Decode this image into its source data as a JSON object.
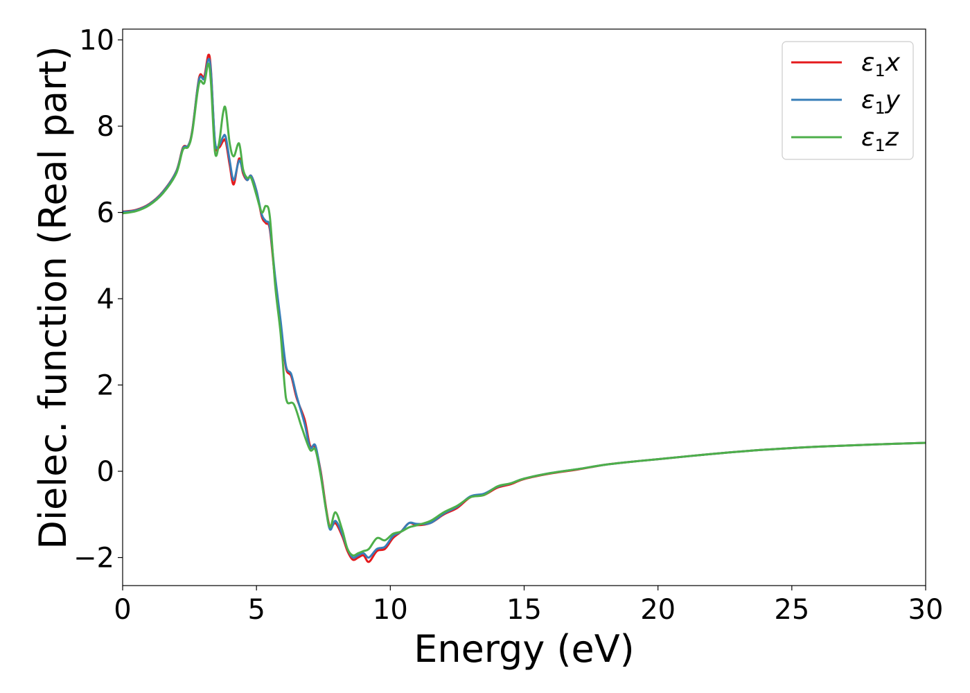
{
  "chart_data": {
    "type": "line",
    "xlabel": "Energy (eV)",
    "ylabel": "Dielec. function (Real part)",
    "xlim": [
      0,
      30
    ],
    "ylim": [
      -2.65,
      10.25
    ],
    "xticks": [
      "0",
      "5",
      "10",
      "15",
      "20",
      "25",
      "30"
    ],
    "yticks": [
      "−2",
      "0",
      "2",
      "4",
      "6",
      "8",
      "10"
    ],
    "xtick_values": [
      0,
      5,
      10,
      15,
      20,
      25,
      30
    ],
    "ytick_values": [
      -2,
      0,
      2,
      4,
      6,
      8,
      10
    ],
    "grid": false,
    "legend_position": "top-right",
    "series": [
      {
        "name": "ε₁x",
        "legend_base": "ε",
        "legend_sub": "1",
        "legend_var": "x",
        "color": "#e41a1c",
        "points": [
          [
            0,
            6.02
          ],
          [
            0.5,
            6.06
          ],
          [
            1,
            6.2
          ],
          [
            1.5,
            6.48
          ],
          [
            2,
            6.95
          ],
          [
            2.25,
            7.5
          ],
          [
            2.45,
            7.55
          ],
          [
            2.6,
            7.9
          ],
          [
            2.8,
            8.9
          ],
          [
            2.9,
            9.2
          ],
          [
            3.05,
            9.15
          ],
          [
            3.2,
            9.65
          ],
          [
            3.3,
            9.3
          ],
          [
            3.45,
            7.6
          ],
          [
            3.6,
            7.5
          ],
          [
            3.75,
            7.65
          ],
          [
            3.85,
            7.65
          ],
          [
            4.0,
            7.1
          ],
          [
            4.15,
            6.65
          ],
          [
            4.35,
            7.25
          ],
          [
            4.5,
            6.9
          ],
          [
            4.65,
            6.75
          ],
          [
            4.8,
            6.85
          ],
          [
            5.0,
            6.5
          ],
          [
            5.2,
            5.9
          ],
          [
            5.35,
            5.75
          ],
          [
            5.5,
            5.6
          ],
          [
            5.7,
            4.4
          ],
          [
            5.9,
            3.4
          ],
          [
            6.1,
            2.4
          ],
          [
            6.3,
            2.2
          ],
          [
            6.5,
            1.7
          ],
          [
            6.8,
            1.2
          ],
          [
            7.0,
            0.6
          ],
          [
            7.2,
            0.55
          ],
          [
            7.4,
            0.0
          ],
          [
            7.6,
            -0.85
          ],
          [
            7.75,
            -1.3
          ],
          [
            7.95,
            -1.2
          ],
          [
            8.2,
            -1.5
          ],
          [
            8.4,
            -1.85
          ],
          [
            8.6,
            -2.05
          ],
          [
            8.8,
            -2.0
          ],
          [
            9.0,
            -1.95
          ],
          [
            9.2,
            -2.1
          ],
          [
            9.5,
            -1.85
          ],
          [
            9.8,
            -1.8
          ],
          [
            10.1,
            -1.55
          ],
          [
            10.4,
            -1.4
          ],
          [
            10.7,
            -1.2
          ],
          [
            11.0,
            -1.25
          ],
          [
            11.5,
            -1.2
          ],
          [
            12.0,
            -1.0
          ],
          [
            12.5,
            -0.85
          ],
          [
            13.0,
            -0.6
          ],
          [
            13.5,
            -0.55
          ],
          [
            14.0,
            -0.38
          ],
          [
            14.5,
            -0.3
          ],
          [
            15.0,
            -0.18
          ],
          [
            16.0,
            -0.05
          ],
          [
            17.0,
            0.04
          ],
          [
            18.0,
            0.15
          ],
          [
            19.0,
            0.22
          ],
          [
            20.0,
            0.28
          ],
          [
            22.0,
            0.4
          ],
          [
            24.0,
            0.5
          ],
          [
            26.0,
            0.57
          ],
          [
            28.0,
            0.62
          ],
          [
            30.0,
            0.66
          ]
        ]
      },
      {
        "name": "ε₁y",
        "legend_base": "ε",
        "legend_sub": "1",
        "legend_var": "y",
        "color": "#377eb8",
        "points": [
          [
            0,
            6.01
          ],
          [
            0.5,
            6.05
          ],
          [
            1,
            6.19
          ],
          [
            1.5,
            6.47
          ],
          [
            2,
            6.94
          ],
          [
            2.25,
            7.48
          ],
          [
            2.45,
            7.55
          ],
          [
            2.6,
            7.88
          ],
          [
            2.8,
            8.88
          ],
          [
            2.9,
            9.15
          ],
          [
            3.05,
            9.1
          ],
          [
            3.2,
            9.55
          ],
          [
            3.3,
            9.25
          ],
          [
            3.45,
            7.65
          ],
          [
            3.6,
            7.55
          ],
          [
            3.75,
            7.75
          ],
          [
            3.85,
            7.75
          ],
          [
            4.0,
            7.2
          ],
          [
            4.15,
            6.75
          ],
          [
            4.35,
            7.2
          ],
          [
            4.5,
            6.95
          ],
          [
            4.65,
            6.75
          ],
          [
            4.8,
            6.85
          ],
          [
            5.0,
            6.5
          ],
          [
            5.2,
            5.95
          ],
          [
            5.35,
            5.8
          ],
          [
            5.5,
            5.65
          ],
          [
            5.7,
            4.5
          ],
          [
            5.9,
            3.5
          ],
          [
            6.1,
            2.45
          ],
          [
            6.3,
            2.25
          ],
          [
            6.5,
            1.75
          ],
          [
            6.8,
            1.1
          ],
          [
            7.0,
            0.55
          ],
          [
            7.2,
            0.6
          ],
          [
            7.4,
            -0.05
          ],
          [
            7.6,
            -0.9
          ],
          [
            7.75,
            -1.35
          ],
          [
            7.95,
            -1.15
          ],
          [
            8.2,
            -1.45
          ],
          [
            8.4,
            -1.8
          ],
          [
            8.6,
            -2.0
          ],
          [
            8.8,
            -1.95
          ],
          [
            9.0,
            -1.9
          ],
          [
            9.2,
            -2.0
          ],
          [
            9.5,
            -1.8
          ],
          [
            9.8,
            -1.75
          ],
          [
            10.1,
            -1.5
          ],
          [
            10.4,
            -1.4
          ],
          [
            10.7,
            -1.2
          ],
          [
            11.0,
            -1.22
          ],
          [
            11.5,
            -1.2
          ],
          [
            12.0,
            -0.98
          ],
          [
            12.5,
            -0.82
          ],
          [
            13.0,
            -0.58
          ],
          [
            13.5,
            -0.52
          ],
          [
            14.0,
            -0.36
          ],
          [
            14.5,
            -0.28
          ],
          [
            15.0,
            -0.17
          ],
          [
            16.0,
            -0.04
          ],
          [
            17.0,
            0.05
          ],
          [
            18.0,
            0.15
          ],
          [
            19.0,
            0.22
          ],
          [
            20.0,
            0.28
          ],
          [
            22.0,
            0.4
          ],
          [
            24.0,
            0.5
          ],
          [
            26.0,
            0.57
          ],
          [
            28.0,
            0.62
          ],
          [
            30.0,
            0.66
          ]
        ]
      },
      {
        "name": "ε₁z",
        "legend_base": "ε",
        "legend_sub": "1",
        "legend_var": "z",
        "color": "#4daf4a",
        "points": [
          [
            0,
            5.98
          ],
          [
            0.5,
            6.03
          ],
          [
            1,
            6.17
          ],
          [
            1.5,
            6.44
          ],
          [
            2,
            6.9
          ],
          [
            2.25,
            7.45
          ],
          [
            2.45,
            7.52
          ],
          [
            2.6,
            7.85
          ],
          [
            2.8,
            8.8
          ],
          [
            2.9,
            9.05
          ],
          [
            3.05,
            9.0
          ],
          [
            3.2,
            9.45
          ],
          [
            3.3,
            9.0
          ],
          [
            3.45,
            7.4
          ],
          [
            3.6,
            7.6
          ],
          [
            3.75,
            8.3
          ],
          [
            3.85,
            8.4
          ],
          [
            4.0,
            7.6
          ],
          [
            4.15,
            7.3
          ],
          [
            4.35,
            7.6
          ],
          [
            4.5,
            7.0
          ],
          [
            4.65,
            6.8
          ],
          [
            4.8,
            6.8
          ],
          [
            5.0,
            6.4
          ],
          [
            5.2,
            6.0
          ],
          [
            5.35,
            6.15
          ],
          [
            5.5,
            5.9
          ],
          [
            5.7,
            4.3
          ],
          [
            5.9,
            3.2
          ],
          [
            6.05,
            2.0
          ],
          [
            6.15,
            1.6
          ],
          [
            6.4,
            1.55
          ],
          [
            6.7,
            1.0
          ],
          [
            7.0,
            0.5
          ],
          [
            7.2,
            0.5
          ],
          [
            7.4,
            -0.1
          ],
          [
            7.6,
            -0.9
          ],
          [
            7.75,
            -1.3
          ],
          [
            7.95,
            -0.95
          ],
          [
            8.2,
            -1.35
          ],
          [
            8.4,
            -1.8
          ],
          [
            8.6,
            -1.95
          ],
          [
            8.8,
            -1.9
          ],
          [
            9.0,
            -1.85
          ],
          [
            9.2,
            -1.8
          ],
          [
            9.5,
            -1.55
          ],
          [
            9.8,
            -1.6
          ],
          [
            10.1,
            -1.45
          ],
          [
            10.4,
            -1.4
          ],
          [
            10.7,
            -1.3
          ],
          [
            11.0,
            -1.25
          ],
          [
            11.5,
            -1.15
          ],
          [
            12.0,
            -0.95
          ],
          [
            12.5,
            -0.8
          ],
          [
            13.0,
            -0.6
          ],
          [
            13.5,
            -0.55
          ],
          [
            14.0,
            -0.35
          ],
          [
            14.5,
            -0.28
          ],
          [
            15.0,
            -0.17
          ],
          [
            16.0,
            -0.04
          ],
          [
            17.0,
            0.05
          ],
          [
            18.0,
            0.15
          ],
          [
            19.0,
            0.22
          ],
          [
            20.0,
            0.28
          ],
          [
            22.0,
            0.4
          ],
          [
            24.0,
            0.5
          ],
          [
            26.0,
            0.57
          ],
          [
            28.0,
            0.62
          ],
          [
            30.0,
            0.66
          ]
        ]
      }
    ]
  }
}
